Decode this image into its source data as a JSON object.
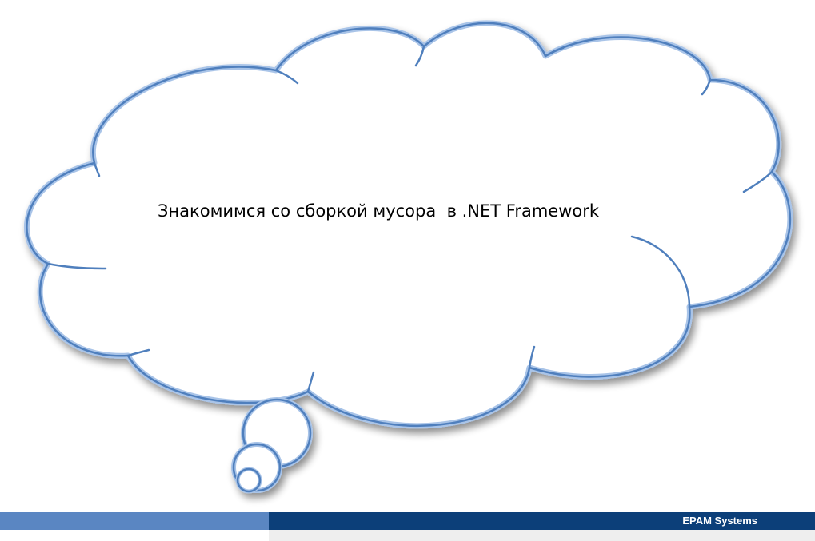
{
  "slide": {
    "caption": "Знакомимся со сборкой мусора  в .NET Framework"
  },
  "footer": {
    "brand": "EPAM Systems"
  },
  "colors": {
    "cloud_stroke": "#4f7fbd",
    "cloud_glow": "#a9c4e8",
    "footer_left": "#5a86c2",
    "footer_right": "#0c3f79"
  }
}
